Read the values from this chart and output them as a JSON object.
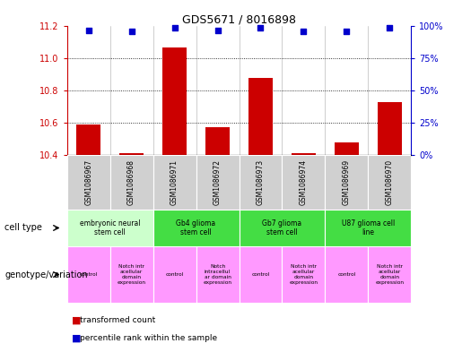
{
  "title": "GDS5671 / 8016898",
  "samples": [
    "GSM1086967",
    "GSM1086968",
    "GSM1086971",
    "GSM1086972",
    "GSM1086973",
    "GSM1086974",
    "GSM1086969",
    "GSM1086970"
  ],
  "transformed_counts": [
    10.59,
    10.41,
    11.07,
    10.57,
    10.88,
    10.41,
    10.48,
    10.73
  ],
  "percentile_ranks": [
    97,
    96,
    99,
    97,
    99,
    96,
    96,
    99
  ],
  "ylim_left": [
    10.4,
    11.2
  ],
  "ylim_right": [
    0,
    100
  ],
  "yticks_left": [
    10.4,
    10.6,
    10.8,
    11.0,
    11.2
  ],
  "yticks_right": [
    0,
    25,
    50,
    75,
    100
  ],
  "cell_types": [
    {
      "label": "embryonic neural\nstem cell",
      "start": 0,
      "end": 2,
      "color": "#ccffcc"
    },
    {
      "label": "Gb4 glioma\nstem cell",
      "start": 2,
      "end": 4,
      "color": "#44dd44"
    },
    {
      "label": "Gb7 glioma\nstem cell",
      "start": 4,
      "end": 6,
      "color": "#44dd44"
    },
    {
      "label": "U87 glioma cell\nline",
      "start": 6,
      "end": 8,
      "color": "#44dd44"
    }
  ],
  "genotype_variations": [
    {
      "label": "control",
      "start": 0,
      "end": 1,
      "color": "#ff99ff"
    },
    {
      "label": "Notch intr\nacellular\ndomain\nexpression",
      "start": 1,
      "end": 2,
      "color": "#ff99ff"
    },
    {
      "label": "control",
      "start": 2,
      "end": 3,
      "color": "#ff99ff"
    },
    {
      "label": "Notch\nintracellul\nar domain\nexpression",
      "start": 3,
      "end": 4,
      "color": "#ff99ff"
    },
    {
      "label": "control",
      "start": 4,
      "end": 5,
      "color": "#ff99ff"
    },
    {
      "label": "Notch intr\nacellular\ndomain\nexpression",
      "start": 5,
      "end": 6,
      "color": "#ff99ff"
    },
    {
      "label": "control",
      "start": 6,
      "end": 7,
      "color": "#ff99ff"
    },
    {
      "label": "Notch intr\nacellular\ndomain\nexpression",
      "start": 7,
      "end": 8,
      "color": "#ff99ff"
    }
  ],
  "bar_color": "#cc0000",
  "scatter_color": "#0000cc",
  "bar_bottom": 10.4,
  "left_axis_color": "#cc0000",
  "right_axis_color": "#0000cc",
  "sample_box_color": "#d0d0d0",
  "fig_width": 5.15,
  "fig_height": 3.93,
  "dpi": 100
}
